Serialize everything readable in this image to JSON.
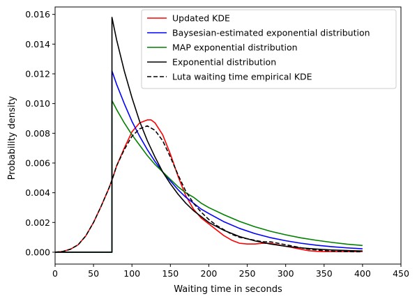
{
  "chart_data": {
    "type": "line",
    "title": "",
    "xlabel": "Waiting time in seconds",
    "ylabel": "Probability density",
    "xlim": [
      0,
      450
    ],
    "ylim": [
      -0.0008,
      0.0165
    ],
    "xticks": [
      0,
      50,
      100,
      150,
      200,
      250,
      300,
      350,
      400,
      450
    ],
    "yticks": [
      0.0,
      0.002,
      0.004,
      0.006,
      0.008,
      0.01,
      0.012,
      0.014,
      0.016
    ],
    "ytick_labels": [
      "0.000",
      "0.002",
      "0.004",
      "0.006",
      "0.008",
      "0.010",
      "0.012",
      "0.014",
      "0.016"
    ],
    "grid": false,
    "legend_position": "top-right",
    "series": [
      {
        "name": "Updated KDE",
        "color": "#ff0000",
        "dash": "solid",
        "x": [
          0,
          10,
          20,
          30,
          40,
          50,
          60,
          70,
          75,
          80,
          90,
          100,
          110,
          120,
          125,
          130,
          140,
          150,
          160,
          170,
          180,
          190,
          200,
          210,
          220,
          230,
          240,
          250,
          260,
          270,
          280,
          290,
          300,
          310,
          320,
          330,
          340,
          350,
          360,
          370,
          380,
          390,
          400
        ],
        "y": [
          0.0,
          5e-05,
          0.0002,
          0.0005,
          0.0011,
          0.002,
          0.0031,
          0.0043,
          0.005,
          0.0058,
          0.007,
          0.0081,
          0.0087,
          0.0089,
          0.0089,
          0.0087,
          0.0079,
          0.0066,
          0.0051,
          0.0038,
          0.0029,
          0.0023,
          0.0019,
          0.0015,
          0.0011,
          0.0008,
          0.0006,
          0.00055,
          0.00055,
          0.0006,
          0.0006,
          0.0005,
          0.0004,
          0.0003,
          0.0002,
          0.0001,
          6e-05,
          4e-05,
          4e-05,
          4e-05,
          4e-05,
          4e-05,
          4e-05
        ]
      },
      {
        "name": "Baysesian-estimated exponential distribution",
        "color": "#0000ff",
        "dash": "solid",
        "x": [
          0,
          74,
          74,
          80,
          90,
          100,
          110,
          120,
          130,
          140,
          150,
          160,
          170,
          180,
          190,
          200,
          220,
          240,
          260,
          280,
          300,
          320,
          340,
          360,
          380,
          400
        ],
        "y": [
          0.0,
          0.0,
          0.0122,
          0.0113,
          0.01,
          0.0088,
          0.0078,
          0.0069,
          0.0061,
          0.0054,
          0.0048,
          0.0042,
          0.0037,
          0.0033,
          0.0029,
          0.0026,
          0.00204,
          0.0016,
          0.00125,
          0.00098,
          0.00077,
          0.0006,
          0.00047,
          0.00037,
          0.00029,
          0.00023
        ]
      },
      {
        "name": "MAP exponential distribution",
        "color": "#008000",
        "dash": "solid",
        "x": [
          0,
          74,
          74,
          80,
          90,
          100,
          110,
          120,
          130,
          140,
          150,
          160,
          170,
          180,
          190,
          200,
          220,
          240,
          260,
          280,
          300,
          320,
          340,
          360,
          380,
          400
        ],
        "y": [
          0.0,
          0.0,
          0.0102,
          0.0096,
          0.0087,
          0.0079,
          0.0072,
          0.0065,
          0.0059,
          0.0054,
          0.0049,
          0.0044,
          0.004,
          0.0037,
          0.0033,
          0.003,
          0.00251,
          0.00207,
          0.00171,
          0.00141,
          0.00117,
          0.00096,
          0.0008,
          0.00066,
          0.00054,
          0.00045
        ]
      },
      {
        "name": "Exponential distribution",
        "color": "#000000",
        "dash": "solid",
        "x": [
          0,
          74,
          74,
          80,
          90,
          100,
          110,
          120,
          130,
          140,
          150,
          160,
          170,
          180,
          190,
          200,
          220,
          240,
          260,
          280,
          300,
          320,
          340,
          360,
          380,
          400
        ],
        "y": [
          0.0,
          0.0,
          0.0158,
          0.0143,
          0.0122,
          0.0104,
          0.0088,
          0.0075,
          0.0064,
          0.0054,
          0.0046,
          0.0039,
          0.0033,
          0.0028,
          0.0024,
          0.002,
          0.00146,
          0.00105,
          0.00076,
          0.00055,
          0.0004,
          0.00029,
          0.00021,
          0.00015,
          0.00011,
          8e-05
        ]
      },
      {
        "name": "Luta waiting time empirical KDE",
        "color": "#000000",
        "dash": "dashed",
        "x": [
          0,
          10,
          20,
          30,
          40,
          50,
          60,
          70,
          75,
          80,
          90,
          100,
          110,
          120,
          130,
          140,
          150,
          160,
          170,
          180,
          190,
          200,
          210,
          220,
          230,
          240,
          250,
          260,
          270,
          280,
          290,
          300,
          310,
          320,
          330,
          340,
          350,
          360,
          370,
          380,
          390,
          400
        ],
        "y": [
          0.0,
          5e-05,
          0.0002,
          0.0005,
          0.0011,
          0.002,
          0.0031,
          0.0043,
          0.005,
          0.0058,
          0.0069,
          0.0078,
          0.0083,
          0.0085,
          0.0082,
          0.0075,
          0.0064,
          0.0052,
          0.0041,
          0.0033,
          0.0027,
          0.0022,
          0.0018,
          0.0015,
          0.0012,
          0.001,
          0.0009,
          0.0008,
          0.0007,
          0.0007,
          0.0006,
          0.0005,
          0.0004,
          0.0003,
          0.0002,
          0.00015,
          0.0001,
          7e-05,
          5e-05,
          4e-05,
          3e-05,
          3e-05
        ]
      }
    ]
  }
}
